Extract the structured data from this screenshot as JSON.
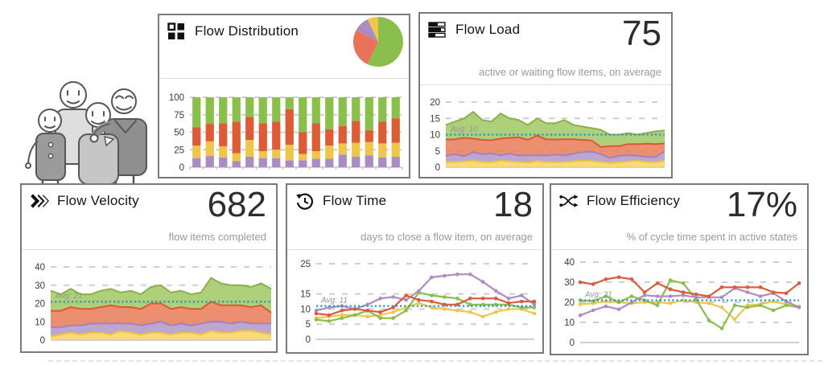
{
  "panels": [
    {
      "title": "Flow Distribution"
    },
    {
      "title": "Flow Load",
      "value": "75",
      "subtitle": "active or waiting flow items, on average"
    },
    {
      "title": "Flow Velocity",
      "value": "682",
      "subtitle": "flow items completed"
    },
    {
      "title": "Flow Time",
      "value": "18",
      "subtitle": "days to close a flow item, on average"
    },
    {
      "title": "Flow Efficiency",
      "value": "17%",
      "subtitle": "% of cycle time spent in active states"
    }
  ],
  "icons": {
    "flow_distribution": "grid-squares-icon",
    "flow_load": "stacked-bars-icon",
    "flow_velocity": "triple-chevron-icon",
    "flow_time": "history-clock-icon",
    "flow_efficiency": "crossing-flows-icon"
  },
  "colors": {
    "green": "#8abf4c",
    "orange": "#dd5b3d",
    "yellow": "#ecc74c",
    "purple": "#b08cc4",
    "avg_line": "#2b93c0",
    "grid": "#cfcfcf",
    "axis": "#c0c0c0",
    "tick_text": "#3a3a3a"
  },
  "chart_data": [
    {
      "name": "flow-distribution-bars",
      "type": "bar",
      "stacked": true,
      "title": "Flow Distribution",
      "ylim": [
        0,
        100
      ],
      "ymax": 100,
      "yticks": [
        100,
        75,
        50,
        25,
        0
      ],
      "grid": "dashed",
      "legend": "none",
      "series": [
        {
          "name": "purple",
          "color": "#a98cc1",
          "values": [
            13,
            16,
            14,
            9,
            15,
            13,
            13,
            10,
            10,
            12,
            12,
            18,
            15,
            17,
            14,
            15
          ]
        },
        {
          "name": "yellow",
          "color": "#f0c64a",
          "values": [
            18,
            21,
            16,
            11,
            24,
            10,
            12,
            22,
            9,
            11,
            19,
            16,
            20,
            19,
            20,
            20
          ]
        },
        {
          "name": "orange",
          "color": "#dd5b35",
          "values": [
            26,
            25,
            33,
            45,
            33,
            40,
            40,
            51,
            31,
            40,
            23,
            25,
            31,
            17,
            31,
            35
          ]
        },
        {
          "name": "green",
          "color": "#8abf4c",
          "values": [
            43,
            38,
            37,
            35,
            28,
            37,
            35,
            17,
            50,
            37,
            46,
            41,
            34,
            47,
            35,
            30
          ]
        }
      ]
    },
    {
      "name": "flow-distribution-pie",
      "type": "pie",
      "slices": [
        {
          "label": "green",
          "value": 57,
          "color": "#8abf4c"
        },
        {
          "label": "orange",
          "value": 26,
          "color": "#e8735a"
        },
        {
          "label": "purple",
          "value": 10,
          "color": "#a98cc1"
        },
        {
          "label": "yellow",
          "value": 7,
          "color": "#f0c64a"
        }
      ]
    },
    {
      "name": "flow-load",
      "type": "area",
      "stacked": true,
      "title": "Flow Load",
      "ylim": [
        0,
        20
      ],
      "ymax": 20,
      "yticks": [
        20,
        15,
        10,
        5,
        0
      ],
      "grid": "dashed",
      "avg": {
        "value": 10,
        "label": "Avg: 10",
        "color": "#2b93c0"
      },
      "series": [
        {
          "name": "yellow",
          "fill": "#f7d569",
          "stroke": "#eec33f",
          "values": [
            1.5,
            1.6,
            1.8,
            2.0,
            1.6,
            1.5,
            2.0,
            1.8,
            1.6,
            1.4,
            1.9,
            1.6,
            1.5,
            1.6,
            1.8,
            2.0,
            1.9,
            1.6,
            1.3,
            1.5,
            1.8,
            2.0,
            1.6,
            1.5,
            2.0
          ]
        },
        {
          "name": "purple",
          "fill": "#b49bc9",
          "stroke": "#a182bd",
          "values": [
            2.0,
            2.4,
            1.6,
            2.6,
            2.4,
            2.8,
            1.6,
            2.4,
            2.0,
            2.2,
            1.8,
            2.0,
            2.4,
            2.0,
            2.4,
            2.6,
            2.9,
            2.4,
            1.6,
            2.0,
            1.9,
            1.5,
            1.6,
            1.6,
            2.9
          ]
        },
        {
          "name": "orange",
          "fill": "#e87f5c",
          "stroke": "#dc5835",
          "values": [
            5.0,
            4.6,
            5.6,
            4.2,
            4.4,
            4.0,
            5.2,
            4.8,
            5.6,
            4.8,
            6.0,
            5.0,
            4.6,
            5.0,
            4.4,
            3.8,
            3.4,
            2.2,
            3.6,
            3.0,
            3.4,
            3.6,
            4.0,
            4.0,
            2.4
          ]
        },
        {
          "name": "green",
          "fill": "#a3c969",
          "stroke": "#8ab147",
          "values": [
            4.5,
            5.4,
            6.0,
            8.2,
            6.1,
            5.7,
            7.7,
            6.0,
            5.3,
            4.6,
            5.3,
            4.9,
            5.0,
            5.9,
            4.4,
            4.1,
            3.8,
            5.3,
            3.5,
            3.5,
            3.4,
            2.9,
            3.3,
            3.9,
            4.0
          ]
        }
      ]
    },
    {
      "name": "flow-velocity",
      "type": "area",
      "stacked": true,
      "title": "Flow Velocity",
      "ylim": [
        0,
        40
      ],
      "ymax": 40,
      "yticks": [
        40,
        30,
        20,
        10,
        0
      ],
      "grid": "dashed",
      "avg": {
        "value": 21,
        "label": "Avg: 21",
        "color": "#2b93c0"
      },
      "series": [
        {
          "name": "yellow",
          "fill": "#f7d569",
          "stroke": "#eec33f",
          "values": [
            2,
            3,
            4,
            3,
            4,
            4,
            3,
            5,
            4,
            3,
            4,
            4,
            3,
            4,
            4,
            3,
            5,
            4,
            4,
            5,
            5,
            4,
            3
          ]
        },
        {
          "name": "purple",
          "fill": "#b49bc9",
          "stroke": "#a182bd",
          "values": [
            5,
            4,
            4,
            5,
            5,
            5,
            6,
            4,
            5,
            5,
            5,
            6,
            5,
            5,
            4,
            6,
            5,
            6,
            5,
            5,
            4,
            5,
            6
          ]
        },
        {
          "name": "orange",
          "fill": "#e87f5c",
          "stroke": "#dc5835",
          "values": [
            9,
            9,
            10,
            9,
            8,
            9,
            10,
            9,
            9,
            9,
            11,
            10,
            9,
            9,
            9,
            8,
            11,
            9,
            10,
            9,
            9,
            10,
            6
          ]
        },
        {
          "name": "green",
          "fill": "#a3c969",
          "stroke": "#8ab147",
          "values": [
            11,
            9,
            10,
            8,
            8,
            9,
            9,
            8,
            9,
            8,
            9,
            10,
            9,
            9,
            8,
            9,
            13,
            12,
            11,
            11,
            11,
            12,
            13
          ]
        }
      ]
    },
    {
      "name": "flow-time",
      "type": "line",
      "title": "Flow Time",
      "ylim": [
        0,
        25
      ],
      "ymax": 25,
      "yticks": [
        25,
        15,
        10,
        5,
        0
      ],
      "grid": "dashed",
      "avg": {
        "value": 11,
        "label": "Avg: 11",
        "color": "#2b93c0"
      },
      "series": [
        {
          "name": "yellow",
          "color": "#ecc74c",
          "values": [
            7,
            7.5,
            8,
            8,
            7.5,
            8,
            9,
            10.5,
            12,
            10.5,
            10,
            9.5,
            9,
            7.5,
            9,
            10,
            10,
            8.5
          ]
        },
        {
          "name": "green",
          "color": "#8abf4c",
          "values": [
            6.5,
            6,
            7,
            8,
            9.5,
            7,
            7,
            9.5,
            15.5,
            14.5,
            14,
            13.5,
            11.5,
            11.5,
            11.5,
            11.5,
            10.5,
            10.5
          ]
        },
        {
          "name": "purple",
          "color": "#b08cc4",
          "values": [
            9.5,
            10.5,
            11,
            10,
            11.5,
            13.5,
            14,
            13,
            16,
            20.5,
            21,
            21.5,
            21.5,
            19,
            16,
            13.5,
            14.5,
            11.5
          ]
        },
        {
          "name": "orange",
          "color": "#dd5b3d",
          "values": [
            8.5,
            8,
            9.5,
            10,
            9.5,
            9,
            10.5,
            14.5,
            13,
            12.5,
            11.5,
            11.5,
            13.5,
            13.5,
            13.5,
            12,
            12.5,
            12.5
          ]
        }
      ]
    },
    {
      "name": "flow-efficiency",
      "type": "line",
      "title": "Flow Efficiency",
      "ylim": [
        0,
        40
      ],
      "ymax": 40,
      "yticks": [
        40,
        30,
        20,
        10,
        0
      ],
      "grid": "dashed",
      "avg": {
        "value": 21,
        "label": "Avg: 21",
        "color": "#2b93c0"
      },
      "series": [
        {
          "name": "yellow",
          "color": "#ecc74c",
          "values": [
            19,
            19.5,
            20.5,
            20,
            19.5,
            20,
            20,
            19.5,
            21,
            20,
            19.5,
            17.5,
            11.5,
            18.5,
            19,
            20.5,
            19,
            18
          ]
        },
        {
          "name": "green",
          "color": "#8abf4c",
          "values": [
            21,
            20.5,
            23,
            20,
            23,
            21,
            18.5,
            31,
            29.5,
            21.5,
            11,
            7,
            18.5,
            17.5,
            18.5,
            16,
            18.5,
            17.5
          ]
        },
        {
          "name": "purple",
          "color": "#b08cc4",
          "values": [
            13.5,
            16,
            18,
            16.5,
            20,
            23.5,
            23,
            23,
            23.5,
            22.5,
            22.5,
            22.5,
            27,
            25,
            23,
            24.5,
            20.5,
            17.5
          ]
        },
        {
          "name": "orange",
          "color": "#dd5b3d",
          "values": [
            30,
            29,
            31.5,
            32.5,
            31.5,
            25,
            29.5,
            26.5,
            25,
            24,
            23,
            27.5,
            27.5,
            27.5,
            27.5,
            25,
            24.5,
            29.5
          ]
        }
      ]
    }
  ]
}
